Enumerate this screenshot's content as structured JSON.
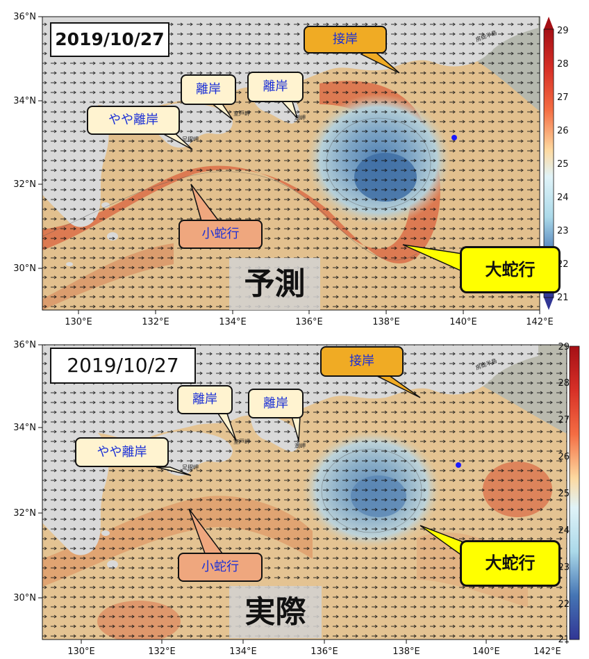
{
  "map": {
    "lat_ticks": [
      "36°N",
      "34°N",
      "32°N",
      "30°N"
    ],
    "lon_ticks": [
      "130°E",
      "132°E",
      "134°E",
      "136°E",
      "138°E",
      "140°E",
      "142°E"
    ],
    "colorbar_ticks": [
      "29",
      "28",
      "27",
      "26",
      "25",
      "24",
      "23",
      "22",
      "21"
    ],
    "colorbar_range": [
      21,
      29
    ],
    "colors": {
      "land": "#d9d9d9",
      "warm": "#d9633e",
      "mild": "#e9c48f",
      "cool": "#a9c9d8",
      "cold": "#4f7fb2",
      "callout_cream": "#fff3d0",
      "callout_orange": "#f0ab24",
      "callout_salmon": "#efa77e",
      "callout_yellow": "#ffff00",
      "label_blue": "#1a2fd6",
      "buoy_dot": "#1a1aff"
    },
    "place_names": [
      "足摺岬",
      "室戸岬",
      "潮岬",
      "房総半島"
    ]
  },
  "panels": [
    {
      "date": "2019/10/27",
      "label": "予測",
      "callouts": {
        "contact": "接岸",
        "offshore_muroto": "離岸",
        "offshore_shiono": "離岸",
        "slight_offshore": "やや離岸",
        "small_meander": "小蛇行",
        "large_meander": "大蛇行"
      }
    },
    {
      "date": "2019/10/27",
      "label": "実際",
      "callouts": {
        "contact": "接岸",
        "offshore_muroto": "離岸",
        "offshore_shiono": "離岸",
        "slight_offshore": "やや離岸",
        "small_meander": "小蛇行",
        "large_meander": "大蛇行"
      }
    }
  ]
}
